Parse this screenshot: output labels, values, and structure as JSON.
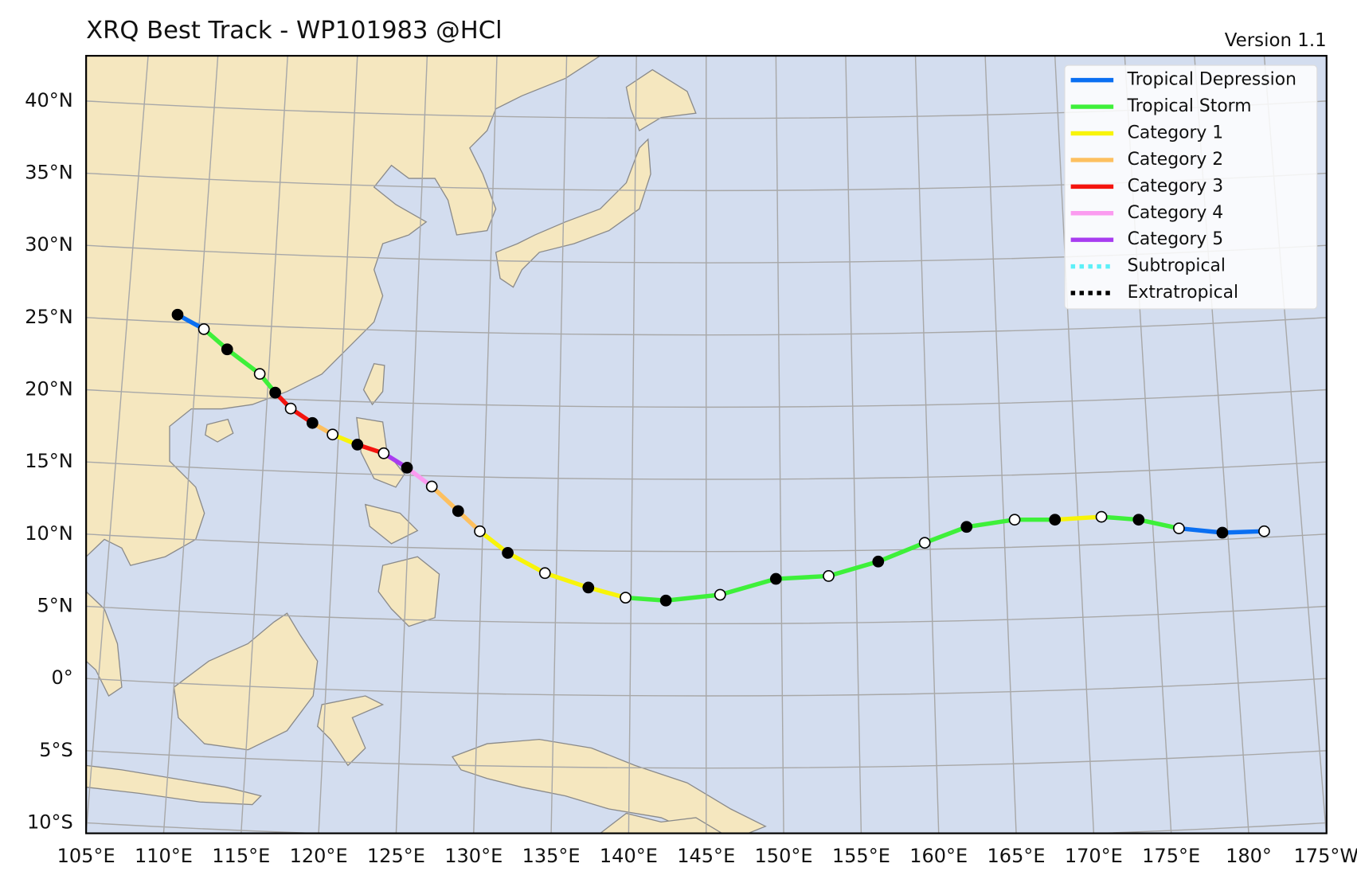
{
  "map": {
    "title": "XRQ Best Track - WP101983  @HCl",
    "version": "Version 1.1",
    "lat_ticks": [
      {
        "value": 40,
        "label": "40°N"
      },
      {
        "value": 35,
        "label": "35°N"
      },
      {
        "value": 30,
        "label": "30°N"
      },
      {
        "value": 25,
        "label": "25°N"
      },
      {
        "value": 20,
        "label": "20°N"
      },
      {
        "value": 15,
        "label": "15°N"
      },
      {
        "value": 10,
        "label": "10°N"
      },
      {
        "value": 5,
        "label": "5°N"
      },
      {
        "value": 0,
        "label": "0°"
      },
      {
        "value": -5,
        "label": "5°S"
      },
      {
        "value": -10,
        "label": "10°S"
      }
    ],
    "lon_ticks": [
      {
        "value": 105,
        "label": "105°E"
      },
      {
        "value": 110,
        "label": "110°E"
      },
      {
        "value": 115,
        "label": "115°E"
      },
      {
        "value": 120,
        "label": "120°E"
      },
      {
        "value": 125,
        "label": "125°E"
      },
      {
        "value": 130,
        "label": "130°E"
      },
      {
        "value": 135,
        "label": "135°E"
      },
      {
        "value": 140,
        "label": "140°E"
      },
      {
        "value": 145,
        "label": "145°E"
      },
      {
        "value": 150,
        "label": "150°E"
      },
      {
        "value": 155,
        "label": "155°E"
      },
      {
        "value": 160,
        "label": "160°E"
      },
      {
        "value": 165,
        "label": "165°E"
      },
      {
        "value": 170,
        "label": "170°E"
      },
      {
        "value": 175,
        "label": "175°E"
      },
      {
        "value": 180,
        "label": "180°"
      },
      {
        "value": 185,
        "label": "175°W"
      }
    ],
    "legend": [
      {
        "name": "Tropical Depression",
        "color": "#0a6ff2",
        "linestyle": "solid"
      },
      {
        "name": "Tropical Storm",
        "color": "#3ef03a",
        "linestyle": "solid"
      },
      {
        "name": "Category 1",
        "color": "#f8f40a",
        "linestyle": "solid"
      },
      {
        "name": "Category 2",
        "color": "#fdc060",
        "linestyle": "solid"
      },
      {
        "name": "Category 3",
        "color": "#f4140e",
        "linestyle": "solid"
      },
      {
        "name": "Category 4",
        "color": "#fb9bf0",
        "linestyle": "solid"
      },
      {
        "name": "Category 5",
        "color": "#a83cf0",
        "linestyle": "solid"
      },
      {
        "name": "Subtropical",
        "color": "#5cf0f8",
        "linestyle": "dotted"
      },
      {
        "name": "Extratropical",
        "color": "#000000",
        "linestyle": "dotted"
      }
    ],
    "track": [
      {
        "lon": 110.9,
        "lat": 25.2,
        "category": "Tropical Depression",
        "filled": true
      },
      {
        "lon": 112.6,
        "lat": 24.2,
        "category": "Tropical Storm",
        "filled": false
      },
      {
        "lon": 114.1,
        "lat": 22.8,
        "category": "Tropical Storm",
        "filled": true
      },
      {
        "lon": 116.2,
        "lat": 21.1,
        "category": "Tropical Storm",
        "filled": false
      },
      {
        "lon": 117.2,
        "lat": 19.8,
        "category": "Category 3",
        "filled": true
      },
      {
        "lon": 118.2,
        "lat": 18.7,
        "category": "Category 3",
        "filled": false
      },
      {
        "lon": 119.6,
        "lat": 17.7,
        "category": "Category 2",
        "filled": true
      },
      {
        "lon": 120.9,
        "lat": 16.9,
        "category": "Category 1",
        "filled": false
      },
      {
        "lon": 122.5,
        "lat": 16.2,
        "category": "Category 3",
        "filled": true
      },
      {
        "lon": 124.2,
        "lat": 15.6,
        "category": "Category 5",
        "filled": false
      },
      {
        "lon": 125.7,
        "lat": 14.6,
        "category": "Category 4",
        "filled": true
      },
      {
        "lon": 127.3,
        "lat": 13.3,
        "category": "Category 2",
        "filled": false
      },
      {
        "lon": 129.0,
        "lat": 11.6,
        "category": "Category 2",
        "filled": true
      },
      {
        "lon": 130.4,
        "lat": 10.2,
        "category": "Category 1",
        "filled": false
      },
      {
        "lon": 132.2,
        "lat": 8.7,
        "category": "Category 1",
        "filled": true
      },
      {
        "lon": 134.6,
        "lat": 7.3,
        "category": "Category 1",
        "filled": false
      },
      {
        "lon": 137.4,
        "lat": 6.3,
        "category": "Category 1",
        "filled": true
      },
      {
        "lon": 139.8,
        "lat": 5.6,
        "category": "Tropical Storm",
        "filled": false
      },
      {
        "lon": 142.4,
        "lat": 5.4,
        "category": "Tropical Storm",
        "filled": true
      },
      {
        "lon": 145.9,
        "lat": 5.8,
        "category": "Tropical Storm",
        "filled": false
      },
      {
        "lon": 149.5,
        "lat": 6.9,
        "category": "Tropical Storm",
        "filled": true
      },
      {
        "lon": 152.9,
        "lat": 7.1,
        "category": "Tropical Storm",
        "filled": false
      },
      {
        "lon": 156.1,
        "lat": 8.1,
        "category": "Tropical Storm",
        "filled": true
      },
      {
        "lon": 159.1,
        "lat": 9.4,
        "category": "Tropical Storm",
        "filled": false
      },
      {
        "lon": 161.8,
        "lat": 10.5,
        "category": "Tropical Storm",
        "filled": true
      },
      {
        "lon": 164.9,
        "lat": 11.0,
        "category": "Tropical Storm",
        "filled": false
      },
      {
        "lon": 167.5,
        "lat": 11.0,
        "category": "Category 1",
        "filled": true
      },
      {
        "lon": 170.5,
        "lat": 11.2,
        "category": "Tropical Storm",
        "filled": false
      },
      {
        "lon": 172.9,
        "lat": 11.0,
        "category": "Tropical Storm",
        "filled": true
      },
      {
        "lon": 175.5,
        "lat": 10.4,
        "category": "Tropical Depression",
        "filled": false
      },
      {
        "lon": 178.3,
        "lat": 10.1,
        "category": "Tropical Depression",
        "filled": true
      },
      {
        "lon": 181.0,
        "lat": 10.2,
        "category": "Tropical Depression",
        "filled": false
      }
    ]
  }
}
